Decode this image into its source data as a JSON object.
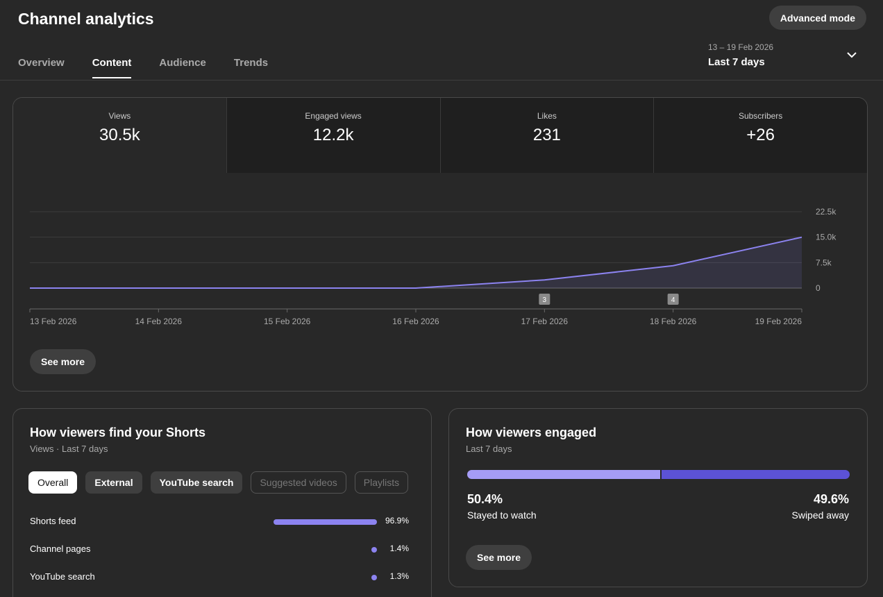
{
  "header": {
    "title": "Channel analytics",
    "advanced_label": "Advanced mode",
    "tabs": [
      {
        "label": "Overview",
        "active": false
      },
      {
        "label": "Content",
        "active": true
      },
      {
        "label": "Audience",
        "active": false
      },
      {
        "label": "Trends",
        "active": false
      }
    ],
    "date_range": "13 – 19 Feb 2026",
    "date_period": "Last 7 days",
    "chevron_icon": "chevron-down-icon"
  },
  "metrics": [
    {
      "label": "Views",
      "value": "30.5k"
    },
    {
      "label": "Engaged views",
      "value": "12.2k"
    },
    {
      "label": "Likes",
      "value": "231"
    },
    {
      "label": "Subscribers",
      "value": "+26"
    }
  ],
  "chart_data": {
    "type": "area",
    "x": [
      "13 Feb 2026",
      "14 Feb 2026",
      "15 Feb 2026",
      "16 Feb 2026",
      "17 Feb 2026",
      "18 Feb 2026",
      "19 Feb 2026"
    ],
    "series": [
      {
        "values": [
          0,
          0,
          0,
          0,
          2400,
          6600,
          15000
        ]
      }
    ],
    "y_ticks": [
      "22.5k",
      "15.0k",
      "7.5k",
      "0"
    ],
    "y_tick_values": [
      22500,
      15000,
      7500,
      0
    ],
    "ylim": [
      0,
      22500
    ],
    "markers": [
      {
        "x": "17 Feb 2026",
        "label": "3"
      },
      {
        "x": "18 Feb 2026",
        "label": "4"
      }
    ],
    "line_color": "#8c83f0",
    "grid": true
  },
  "main_see_more": "See more",
  "find": {
    "title": "How viewers find your Shorts",
    "subtitle": "Views · Last 7 days",
    "chips": [
      {
        "label": "Overall",
        "state": "selected"
      },
      {
        "label": "External",
        "state": "enabled"
      },
      {
        "label": "YouTube search",
        "state": "enabled"
      },
      {
        "label": "Suggested videos",
        "state": "disabled"
      },
      {
        "label": "Playlists",
        "state": "disabled"
      }
    ],
    "sources": [
      {
        "label": "Shorts feed",
        "pct": "96.9%",
        "value": 96.9
      },
      {
        "label": "Channel pages",
        "pct": "1.4%",
        "value": 1.4
      },
      {
        "label": "YouTube search",
        "pct": "1.3%",
        "value": 1.3
      }
    ]
  },
  "engaged": {
    "title": "How viewers engaged",
    "subtitle": "Last 7 days",
    "stayed_pct": "50.4%",
    "stayed_label": "Stayed to watch",
    "stayed_value": 50.4,
    "swiped_pct": "49.6%",
    "swiped_label": "Swiped away",
    "see_more": "See more",
    "colors": {
      "stayed": "#a59cf6",
      "swiped": "#5c52d6"
    }
  }
}
